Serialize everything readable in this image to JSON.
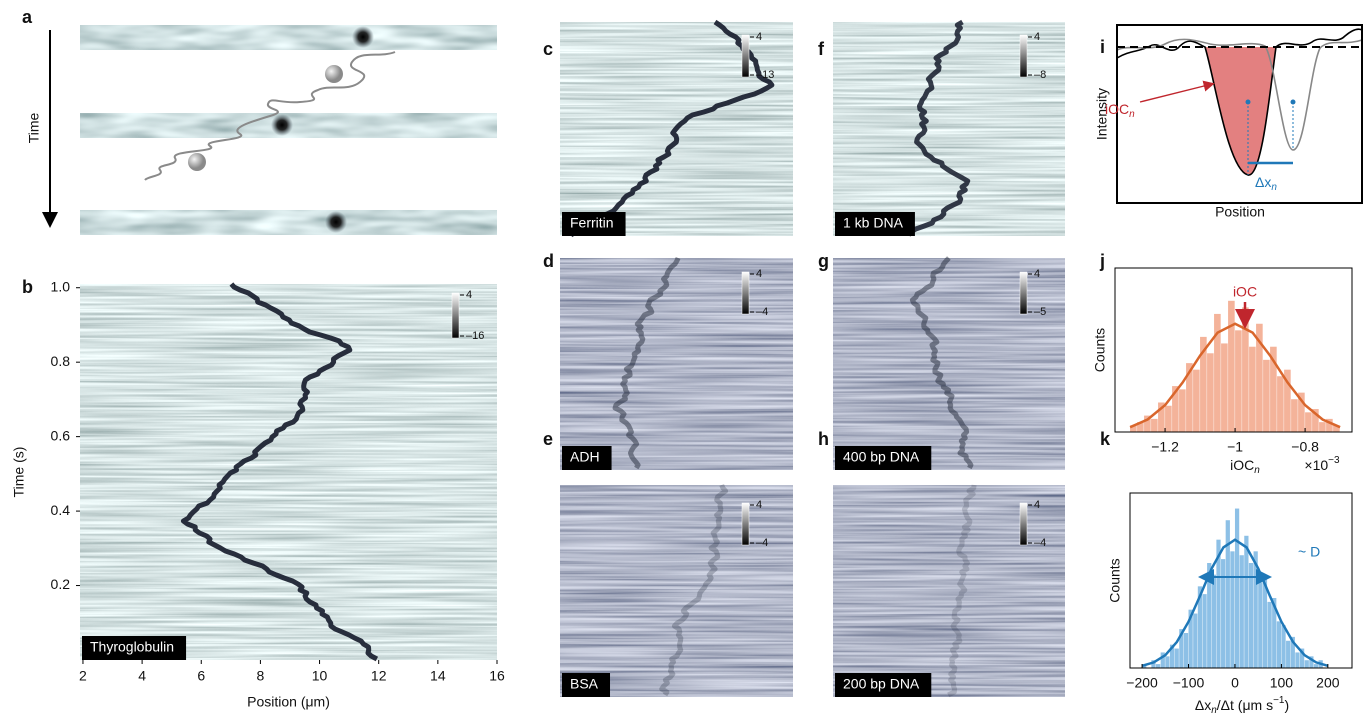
{
  "panels": {
    "a": {
      "label": "a",
      "axis_label": "Time"
    },
    "b": {
      "label": "b",
      "sample": "Thyroglobulin",
      "colorbar": [
        4,
        {
          "value": -16,
          "label": "–16"
        }
      ],
      "xlabel": "Position (μm)",
      "ylabel": "Time (s)",
      "xlim": [
        1.9,
        16
      ],
      "ylim": [
        0,
        1.01
      ],
      "xticks": [
        2,
        4,
        6,
        8,
        10,
        12,
        14,
        16
      ],
      "yticks": [
        0.2,
        0.4,
        0.6,
        0.8,
        {
          "value": 1,
          "label": "1.0"
        }
      ]
    },
    "c": {
      "label": "c",
      "sample": "Ferritin",
      "colorbar": [
        4,
        {
          "value": -13,
          "label": "–13"
        }
      ]
    },
    "d": {
      "label": "d",
      "sample": "ADH",
      "colorbar": [
        4,
        {
          "value": -4,
          "label": "–4"
        }
      ]
    },
    "e": {
      "label": "e",
      "sample": "BSA",
      "colorbar": [
        4,
        {
          "value": -4,
          "label": "–4"
        }
      ]
    },
    "f": {
      "label": "f",
      "sample": "1 kb DNA",
      "colorbar": [
        4,
        {
          "value": -8,
          "label": "–8"
        }
      ]
    },
    "g": {
      "label": "g",
      "sample": "400 bp DNA",
      "colorbar": [
        4,
        {
          "value": -5,
          "label": "–5"
        }
      ]
    },
    "h": {
      "label": "h",
      "sample": "200 bp DNA",
      "colorbar": [
        4,
        {
          "value": -4,
          "label": "–4"
        }
      ]
    },
    "i": {
      "label": "i",
      "ylabel": "Intensity",
      "xlabel": "Position",
      "ioc": {
        "main": "iOC",
        "sub": "n"
      },
      "dx": {
        "main": "Δx",
        "sub": "n"
      }
    },
    "j": {
      "label": "j",
      "type": "histogram",
      "ylabel": "Counts",
      "xlabel": {
        "main": "iOC",
        "sub": "n"
      },
      "multiplier": {
        "main": "×10",
        "sup": "−3"
      },
      "annotation": "iOC",
      "color": "#f4b39a",
      "fit_color": "#d9662c",
      "xlim": [
        -1.343,
        -0.666
      ],
      "ylim": [
        0,
        50
      ],
      "xticks": [
        {
          "value": -1.2,
          "label": "−1.2"
        },
        {
          "value": -1,
          "label": "−1"
        },
        {
          "value": -0.8,
          "label": "−0.8"
        }
      ],
      "bins": [
        -1.3,
        -1.28,
        -1.26,
        -1.24,
        -1.22,
        -1.2,
        -1.18,
        -1.16,
        -1.14,
        -1.12,
        -1.1,
        -1.08,
        -1.06,
        -1.04,
        -1.02,
        -1,
        -0.98,
        -0.96,
        -0.94,
        -0.92,
        -0.9,
        -0.88,
        -0.86,
        -0.84,
        -0.82,
        -0.8,
        -0.78,
        -0.76,
        -0.74,
        -0.72,
        -0.7
      ],
      "counts": [
        2,
        3,
        5,
        4,
        9,
        8,
        14,
        13,
        21,
        19,
        29,
        24,
        36,
        27,
        40,
        31,
        38,
        26,
        33,
        22,
        26,
        17,
        19,
        10,
        12,
        6,
        7,
        3,
        4,
        2
      ],
      "fit": {
        "x": [
          -1.3,
          -1.25,
          -1.2,
          -1.15,
          -1.1,
          -1.05,
          -1,
          -0.95,
          -0.9,
          -0.85,
          -0.8,
          -0.75,
          -0.7
        ],
        "y": [
          1.45,
          3.8,
          8.2,
          15.1,
          23.3,
          30.3,
          33,
          30.3,
          23.3,
          15.1,
          8.2,
          3.8,
          1.45
        ]
      }
    },
    "k": {
      "label": "k",
      "type": "histogram",
      "ylabel": "Counts",
      "xlabel": {
        "main": "Δx",
        "sub": "n",
        "middle": "/Δt (μm s",
        "sup": "−1",
        "end": ")"
      },
      "annotation": "~ D",
      "color": "#8dc0e6",
      "fit_color": "#1f78b8",
      "xlim": [
        -226,
        252
      ],
      "ylim": [
        0,
        45
      ],
      "xticks": [
        {
          "value": -200,
          "label": "−200"
        },
        {
          "value": -100,
          "label": "−100"
        },
        0,
        100,
        200
      ],
      "bins": [
        -200,
        -190,
        -180,
        -170,
        -160,
        -150,
        -140,
        -130,
        -120,
        -110,
        -100,
        -90,
        -80,
        -70,
        -60,
        -50,
        -40,
        -30,
        -20,
        -10,
        0,
        10,
        20,
        30,
        40,
        50,
        60,
        70,
        80,
        90,
        100,
        110,
        120,
        130,
        140,
        150,
        160,
        170,
        180,
        190,
        200
      ],
      "counts": [
        1,
        0,
        2,
        1,
        4,
        3,
        6,
        5,
        10,
        9,
        15,
        14,
        21,
        19,
        27,
        24,
        33,
        28,
        38,
        30,
        41,
        29,
        34,
        27,
        30,
        22,
        24,
        17,
        18,
        12,
        11,
        7,
        8,
        4,
        5,
        2,
        3,
        1,
        2,
        0
      ],
      "fit": {
        "x": [
          -200,
          -175,
          -150,
          -125,
          -100,
          -75,
          -50,
          -25,
          0,
          25,
          50,
          75,
          100,
          125,
          150,
          175,
          200
        ],
        "y": [
          0.56,
          1.45,
          3.3,
          6.7,
          11.9,
          18.6,
          25.6,
          31,
          33,
          31,
          25.6,
          18.6,
          11.9,
          6.7,
          3.3,
          1.45,
          0.56
        ]
      }
    }
  }
}
